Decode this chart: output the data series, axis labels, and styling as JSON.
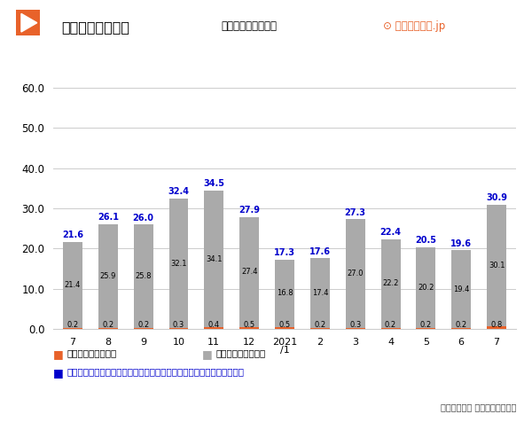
{
  "title": "延べ宿泊数の推移",
  "subtitle": "（単位：百万人泊）",
  "categories": [
    "7",
    "8",
    "9",
    "10",
    "11",
    "12",
    "2021\n/1",
    "2",
    "3",
    "4",
    "5",
    "6",
    "7"
  ],
  "foreign": [
    0.2,
    0.2,
    0.2,
    0.3,
    0.4,
    0.5,
    0.5,
    0.2,
    0.3,
    0.2,
    0.2,
    0.2,
    0.8
  ],
  "domestic": [
    21.4,
    25.9,
    25.8,
    32.1,
    34.1,
    27.4,
    16.8,
    17.4,
    27.0,
    22.2,
    20.2,
    19.4,
    30.1
  ],
  "total": [
    21.6,
    26.1,
    26.0,
    32.4,
    34.5,
    27.9,
    17.3,
    17.6,
    27.3,
    22.4,
    20.5,
    19.6,
    30.9
  ],
  "bar_color_foreign": "#E8622A",
  "bar_color_domestic": "#AAAAAA",
  "total_color": "#0000CC",
  "ylim": [
    0,
    65
  ],
  "yticks": [
    0.0,
    10.0,
    20.0,
    30.0,
    40.0,
    50.0,
    60.0
  ],
  "legend_foreign": "外国人延べ宿泊者数",
  "legend_domestic": "日本人延べ宿泊者数",
  "legend_blue": "青字の数値は、日本人及び外国人の延べ宿泊者数を合計した全体の数値",
  "source": "出典：観光庁 宿泊旅行統計調査",
  "logo_text": "やまとごころ.jp",
  "background_color": "#FFFFFF",
  "grid_color": "#CCCCCC",
  "icon_color": "#E8622A"
}
